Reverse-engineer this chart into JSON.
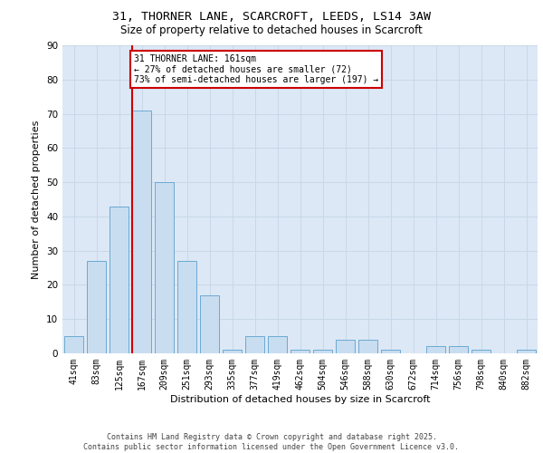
{
  "title_line1": "31, THORNER LANE, SCARCROFT, LEEDS, LS14 3AW",
  "title_line2": "Size of property relative to detached houses in Scarcroft",
  "xlabel": "Distribution of detached houses by size in Scarcroft",
  "ylabel": "Number of detached properties",
  "categories": [
    "41sqm",
    "83sqm",
    "125sqm",
    "167sqm",
    "209sqm",
    "251sqm",
    "293sqm",
    "335sqm",
    "377sqm",
    "419sqm",
    "462sqm",
    "504sqm",
    "546sqm",
    "588sqm",
    "630sqm",
    "672sqm",
    "714sqm",
    "756sqm",
    "798sqm",
    "840sqm",
    "882sqm"
  ],
  "values": [
    5,
    27,
    43,
    71,
    50,
    27,
    17,
    1,
    5,
    5,
    1,
    1,
    4,
    4,
    1,
    0,
    2,
    2,
    1,
    0,
    1
  ],
  "bar_color": "#c9ddf0",
  "bar_edge_color": "#6aaad4",
  "vline_color": "#cc0000",
  "vline_x_index": 2.58,
  "annotation_text": "31 THORNER LANE: 161sqm\n← 27% of detached houses are smaller (72)\n73% of semi-detached houses are larger (197) →",
  "ylim": [
    0,
    90
  ],
  "yticks": [
    0,
    10,
    20,
    30,
    40,
    50,
    60,
    70,
    80,
    90
  ],
  "grid_color": "#c8d8e8",
  "bg_color": "#dce8f5",
  "footer_line1": "Contains HM Land Registry data © Crown copyright and database right 2025.",
  "footer_line2": "Contains public sector information licensed under the Open Government Licence v3.0."
}
